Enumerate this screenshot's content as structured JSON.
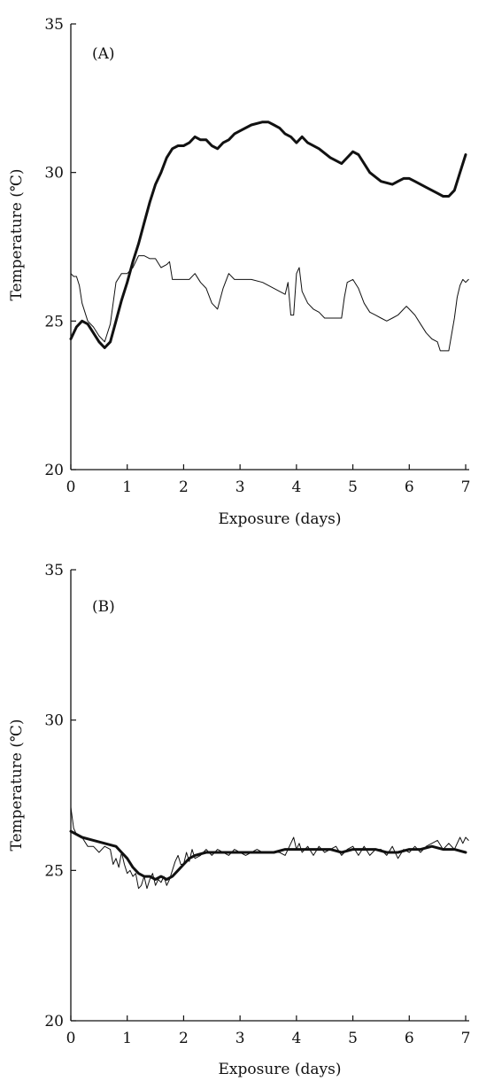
{
  "chart_data": [
    {
      "type": "line",
      "panel_label": "(A)",
      "xlabel": "Exposure (days)",
      "ylabel": "Temperature (℃)",
      "xlim": [
        0,
        7
      ],
      "ylim": [
        20,
        35
      ],
      "xticks": [
        "0",
        "1",
        "2",
        "3",
        "4",
        "5",
        "6",
        "7"
      ],
      "yticks": [
        "20",
        "25",
        "30",
        "35"
      ],
      "grid": false,
      "legend": "none",
      "series": [
        {
          "style": "thick",
          "color": "#111111",
          "points": [
            [
              0,
              24.4
            ],
            [
              0.1,
              24.8
            ],
            [
              0.2,
              25.0
            ],
            [
              0.3,
              24.9
            ],
            [
              0.4,
              24.6
            ],
            [
              0.5,
              24.3
            ],
            [
              0.6,
              24.1
            ],
            [
              0.7,
              24.3
            ],
            [
              0.8,
              25.0
            ],
            [
              0.9,
              25.7
            ],
            [
              1.0,
              26.3
            ],
            [
              1.1,
              27.0
            ],
            [
              1.2,
              27.6
            ],
            [
              1.3,
              28.3
            ],
            [
              1.4,
              29.0
            ],
            [
              1.5,
              29.6
            ],
            [
              1.6,
              30.0
            ],
            [
              1.7,
              30.5
            ],
            [
              1.8,
              30.8
            ],
            [
              1.9,
              30.9
            ],
            [
              2.0,
              30.9
            ],
            [
              2.1,
              31.0
            ],
            [
              2.2,
              31.2
            ],
            [
              2.3,
              31.1
            ],
            [
              2.4,
              31.1
            ],
            [
              2.5,
              30.9
            ],
            [
              2.6,
              30.8
            ],
            [
              2.7,
              31.0
            ],
            [
              2.8,
              31.1
            ],
            [
              2.9,
              31.3
            ],
            [
              3.0,
              31.4
            ],
            [
              3.2,
              31.6
            ],
            [
              3.4,
              31.7
            ],
            [
              3.5,
              31.7
            ],
            [
              3.6,
              31.6
            ],
            [
              3.7,
              31.5
            ],
            [
              3.8,
              31.3
            ],
            [
              3.9,
              31.2
            ],
            [
              4.0,
              31.0
            ],
            [
              4.1,
              31.2
            ],
            [
              4.2,
              31.0
            ],
            [
              4.4,
              30.8
            ],
            [
              4.6,
              30.5
            ],
            [
              4.8,
              30.3
            ],
            [
              4.9,
              30.5
            ],
            [
              5.0,
              30.7
            ],
            [
              5.1,
              30.6
            ],
            [
              5.3,
              30.0
            ],
            [
              5.5,
              29.7
            ],
            [
              5.7,
              29.6
            ],
            [
              5.8,
              29.7
            ],
            [
              5.9,
              29.8
            ],
            [
              6.0,
              29.8
            ],
            [
              6.1,
              29.7
            ],
            [
              6.3,
              29.5
            ],
            [
              6.5,
              29.3
            ],
            [
              6.6,
              29.2
            ],
            [
              6.7,
              29.2
            ],
            [
              6.8,
              29.4
            ],
            [
              6.9,
              30.0
            ],
            [
              7.0,
              30.6
            ]
          ]
        },
        {
          "style": "thin",
          "color": "#111111",
          "points": [
            [
              0,
              26.6
            ],
            [
              0.05,
              26.5
            ],
            [
              0.1,
              26.5
            ],
            [
              0.15,
              26.2
            ],
            [
              0.2,
              25.6
            ],
            [
              0.3,
              25.0
            ],
            [
              0.4,
              24.8
            ],
            [
              0.5,
              24.5
            ],
            [
              0.6,
              24.3
            ],
            [
              0.7,
              24.9
            ],
            [
              0.8,
              26.3
            ],
            [
              0.9,
              26.6
            ],
            [
              1.0,
              26.6
            ],
            [
              1.1,
              26.8
            ],
            [
              1.2,
              27.2
            ],
            [
              1.3,
              27.2
            ],
            [
              1.4,
              27.1
            ],
            [
              1.5,
              27.1
            ],
            [
              1.6,
              26.8
            ],
            [
              1.7,
              26.9
            ],
            [
              1.75,
              27.0
            ],
            [
              1.8,
              26.4
            ],
            [
              1.9,
              26.4
            ],
            [
              2.0,
              26.4
            ],
            [
              2.1,
              26.4
            ],
            [
              2.2,
              26.6
            ],
            [
              2.3,
              26.3
            ],
            [
              2.4,
              26.1
            ],
            [
              2.5,
              25.6
            ],
            [
              2.6,
              25.4
            ],
            [
              2.7,
              26.1
            ],
            [
              2.8,
              26.6
            ],
            [
              2.9,
              26.4
            ],
            [
              3.0,
              26.4
            ],
            [
              3.2,
              26.4
            ],
            [
              3.4,
              26.3
            ],
            [
              3.5,
              26.2
            ],
            [
              3.7,
              26.0
            ],
            [
              3.8,
              25.9
            ],
            [
              3.85,
              26.3
            ],
            [
              3.9,
              25.2
            ],
            [
              3.95,
              25.2
            ],
            [
              4.0,
              26.6
            ],
            [
              4.05,
              26.8
            ],
            [
              4.1,
              26.0
            ],
            [
              4.2,
              25.6
            ],
            [
              4.3,
              25.4
            ],
            [
              4.4,
              25.3
            ],
            [
              4.5,
              25.1
            ],
            [
              4.6,
              25.1
            ],
            [
              4.7,
              25.1
            ],
            [
              4.8,
              25.1
            ],
            [
              4.85,
              25.8
            ],
            [
              4.9,
              26.3
            ],
            [
              5.0,
              26.4
            ],
            [
              5.1,
              26.1
            ],
            [
              5.2,
              25.6
            ],
            [
              5.3,
              25.3
            ],
            [
              5.4,
              25.2
            ],
            [
              5.5,
              25.1
            ],
            [
              5.6,
              25.0
            ],
            [
              5.7,
              25.1
            ],
            [
              5.8,
              25.2
            ],
            [
              5.9,
              25.4
            ],
            [
              5.95,
              25.5
            ],
            [
              6.0,
              25.4
            ],
            [
              6.1,
              25.2
            ],
            [
              6.2,
              24.9
            ],
            [
              6.3,
              24.6
            ],
            [
              6.4,
              24.4
            ],
            [
              6.5,
              24.3
            ],
            [
              6.55,
              24.0
            ],
            [
              6.6,
              24.0
            ],
            [
              6.7,
              24.0
            ],
            [
              6.8,
              25.1
            ],
            [
              6.85,
              25.8
            ],
            [
              6.9,
              26.2
            ],
            [
              6.95,
              26.4
            ],
            [
              7.0,
              26.3
            ],
            [
              7.05,
              26.4
            ]
          ]
        }
      ]
    },
    {
      "type": "line",
      "panel_label": "(B)",
      "xlabel": "Exposure (days)",
      "ylabel": "Temperature (℃)",
      "xlim": [
        0,
        7
      ],
      "ylim": [
        20,
        35
      ],
      "xticks": [
        "0",
        "1",
        "2",
        "3",
        "4",
        "5",
        "6",
        "7"
      ],
      "yticks": [
        "20",
        "25",
        "30",
        "35"
      ],
      "grid": false,
      "legend": "none",
      "series": [
        {
          "style": "thick",
          "color": "#111111",
          "points": [
            [
              0,
              26.3
            ],
            [
              0.2,
              26.1
            ],
            [
              0.4,
              26.0
            ],
            [
              0.6,
              25.9
            ],
            [
              0.8,
              25.8
            ],
            [
              0.9,
              25.6
            ],
            [
              1.0,
              25.4
            ],
            [
              1.1,
              25.1
            ],
            [
              1.2,
              24.9
            ],
            [
              1.3,
              24.8
            ],
            [
              1.4,
              24.8
            ],
            [
              1.5,
              24.7
            ],
            [
              1.6,
              24.8
            ],
            [
              1.7,
              24.7
            ],
            [
              1.8,
              24.8
            ],
            [
              1.9,
              25.0
            ],
            [
              2.0,
              25.2
            ],
            [
              2.1,
              25.4
            ],
            [
              2.2,
              25.5
            ],
            [
              2.4,
              25.6
            ],
            [
              2.6,
              25.6
            ],
            [
              2.8,
              25.6
            ],
            [
              3.0,
              25.6
            ],
            [
              3.2,
              25.6
            ],
            [
              3.4,
              25.6
            ],
            [
              3.6,
              25.6
            ],
            [
              3.8,
              25.7
            ],
            [
              4.0,
              25.7
            ],
            [
              4.2,
              25.7
            ],
            [
              4.4,
              25.7
            ],
            [
              4.6,
              25.7
            ],
            [
              4.8,
              25.6
            ],
            [
              5.0,
              25.7
            ],
            [
              5.2,
              25.7
            ],
            [
              5.4,
              25.7
            ],
            [
              5.6,
              25.6
            ],
            [
              5.8,
              25.6
            ],
            [
              6.0,
              25.7
            ],
            [
              6.2,
              25.7
            ],
            [
              6.4,
              25.8
            ],
            [
              6.6,
              25.7
            ],
            [
              6.8,
              25.7
            ],
            [
              7.0,
              25.6
            ]
          ]
        },
        {
          "style": "thin",
          "color": "#111111",
          "points": [
            [
              0,
              27.1
            ],
            [
              0.05,
              26.4
            ],
            [
              0.1,
              26.2
            ],
            [
              0.2,
              26.1
            ],
            [
              0.3,
              25.8
            ],
            [
              0.4,
              25.8
            ],
            [
              0.5,
              25.6
            ],
            [
              0.6,
              25.8
            ],
            [
              0.7,
              25.7
            ],
            [
              0.75,
              25.2
            ],
            [
              0.8,
              25.4
            ],
            [
              0.85,
              25.1
            ],
            [
              0.9,
              25.6
            ],
            [
              0.95,
              25.2
            ],
            [
              1.0,
              24.9
            ],
            [
              1.05,
              25.0
            ],
            [
              1.1,
              24.8
            ],
            [
              1.15,
              24.9
            ],
            [
              1.2,
              24.4
            ],
            [
              1.25,
              24.5
            ],
            [
              1.3,
              24.8
            ],
            [
              1.35,
              24.4
            ],
            [
              1.4,
              24.7
            ],
            [
              1.45,
              24.9
            ],
            [
              1.5,
              24.5
            ],
            [
              1.55,
              24.7
            ],
            [
              1.6,
              24.6
            ],
            [
              1.65,
              24.8
            ],
            [
              1.7,
              24.5
            ],
            [
              1.75,
              24.7
            ],
            [
              1.8,
              25.0
            ],
            [
              1.85,
              25.3
            ],
            [
              1.9,
              25.5
            ],
            [
              1.95,
              25.2
            ],
            [
              2.0,
              25.2
            ],
            [
              2.05,
              25.6
            ],
            [
              2.1,
              25.3
            ],
            [
              2.15,
              25.7
            ],
            [
              2.2,
              25.4
            ],
            [
              2.3,
              25.5
            ],
            [
              2.4,
              25.7
            ],
            [
              2.5,
              25.5
            ],
            [
              2.6,
              25.7
            ],
            [
              2.7,
              25.6
            ],
            [
              2.8,
              25.5
            ],
            [
              2.9,
              25.7
            ],
            [
              3.0,
              25.6
            ],
            [
              3.1,
              25.5
            ],
            [
              3.2,
              25.6
            ],
            [
              3.3,
              25.7
            ],
            [
              3.4,
              25.6
            ],
            [
              3.5,
              25.6
            ],
            [
              3.6,
              25.6
            ],
            [
              3.7,
              25.6
            ],
            [
              3.8,
              25.5
            ],
            [
              3.9,
              25.9
            ],
            [
              3.95,
              26.1
            ],
            [
              4.0,
              25.7
            ],
            [
              4.05,
              25.9
            ],
            [
              4.1,
              25.6
            ],
            [
              4.2,
              25.8
            ],
            [
              4.3,
              25.5
            ],
            [
              4.4,
              25.8
            ],
            [
              4.5,
              25.6
            ],
            [
              4.6,
              25.7
            ],
            [
              4.7,
              25.8
            ],
            [
              4.8,
              25.5
            ],
            [
              4.9,
              25.7
            ],
            [
              5.0,
              25.8
            ],
            [
              5.1,
              25.5
            ],
            [
              5.2,
              25.8
            ],
            [
              5.3,
              25.5
            ],
            [
              5.4,
              25.7
            ],
            [
              5.5,
              25.7
            ],
            [
              5.6,
              25.5
            ],
            [
              5.7,
              25.8
            ],
            [
              5.8,
              25.4
            ],
            [
              5.9,
              25.7
            ],
            [
              6.0,
              25.6
            ],
            [
              6.1,
              25.8
            ],
            [
              6.2,
              25.6
            ],
            [
              6.3,
              25.8
            ],
            [
              6.4,
              25.9
            ],
            [
              6.5,
              26.0
            ],
            [
              6.6,
              25.7
            ],
            [
              6.7,
              25.9
            ],
            [
              6.8,
              25.7
            ],
            [
              6.9,
              26.1
            ],
            [
              6.95,
              25.9
            ],
            [
              7.0,
              26.1
            ],
            [
              7.05,
              26.0
            ]
          ]
        }
      ]
    }
  ]
}
